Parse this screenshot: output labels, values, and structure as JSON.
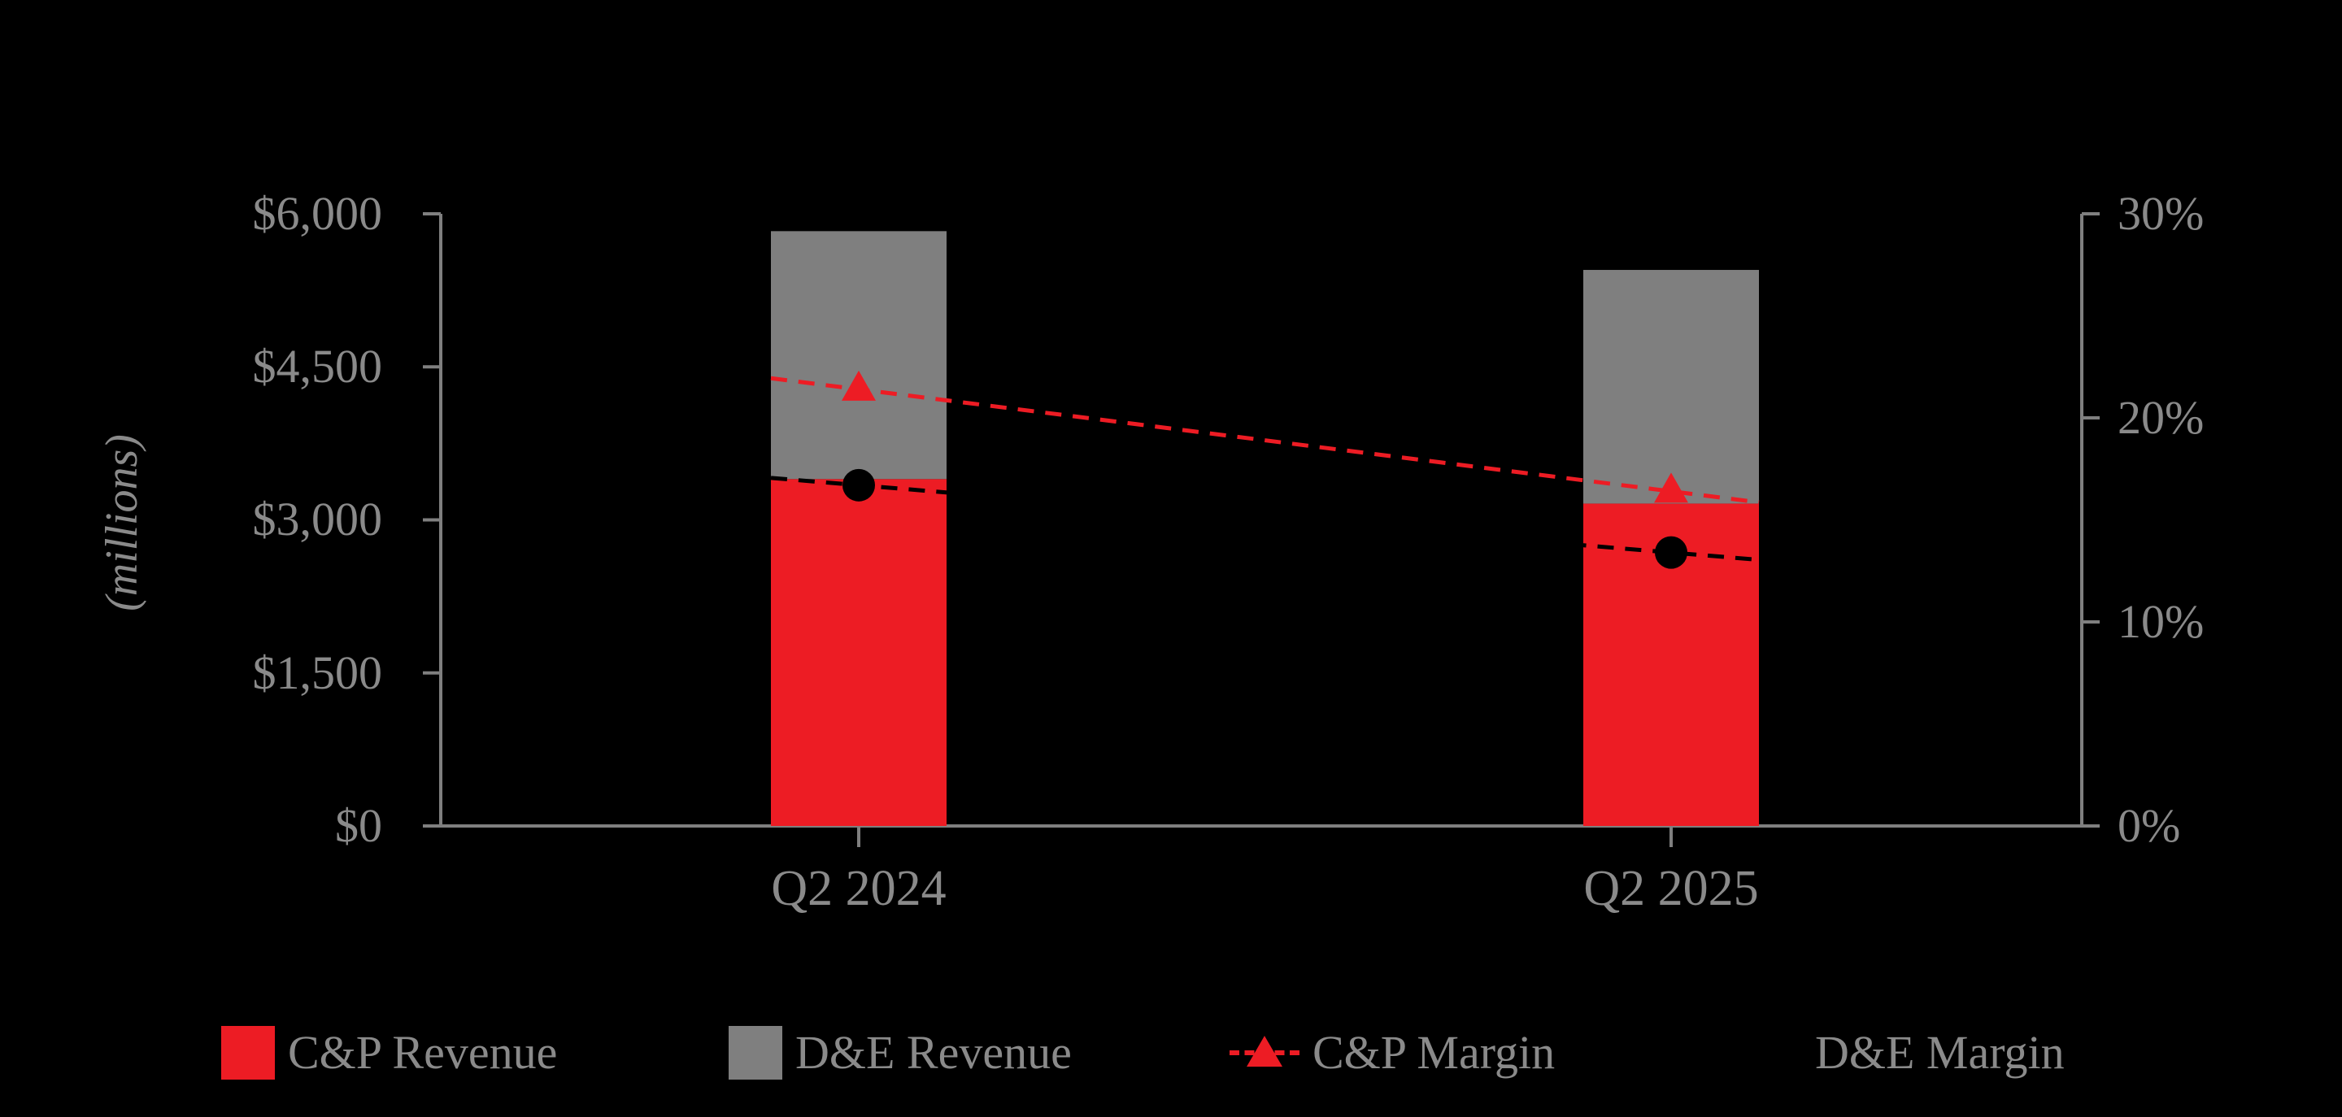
{
  "chart_data": {
    "type": "bar",
    "subtype": "stacked-bar-with-lines",
    "categories": [
      "Q2 2024",
      "Q2 2025"
    ],
    "bar_series": [
      {
        "name": "C&P Revenue",
        "color": "#ed1c24",
        "values": [
          3400,
          3160
        ]
      },
      {
        "name": "D&E Revenue",
        "color": "#7f7f7f",
        "values": [
          2430,
          2290
        ]
      }
    ],
    "line_series": [
      {
        "name": "C&P Margin",
        "color": "#ed1c24",
        "marker": "triangle",
        "values": [
          21.4,
          16.4
        ]
      },
      {
        "name": "D&E Margin",
        "color": "#000000",
        "marker": "circle",
        "values": [
          16.7,
          13.4
        ]
      }
    ],
    "left_axis": {
      "label": "(millions)",
      "min": 0,
      "max": 6000,
      "ticks": [
        "$0",
        "$1,500",
        "$3,000",
        "$4,500",
        "$6,000"
      ]
    },
    "right_axis": {
      "min": 0,
      "max": 30,
      "ticks": [
        "0%",
        "10%",
        "20%",
        "30%"
      ]
    },
    "grid": false,
    "legend_position": "bottom",
    "background_color": "#000000",
    "axis_color": "#7f7f7f",
    "text_color": "#8a8a8a"
  }
}
